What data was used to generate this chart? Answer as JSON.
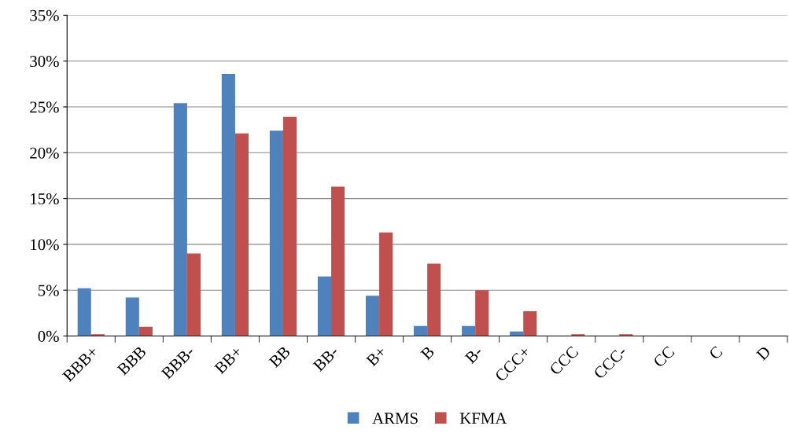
{
  "chart_data": {
    "type": "bar",
    "categories": [
      "BBB+",
      "BBB",
      "BBB-",
      "BB+",
      "BB",
      "BB-",
      "B+",
      "B",
      "B-",
      "CCC+",
      "CCC",
      "CCC-",
      "CC",
      "C",
      "D"
    ],
    "series": [
      {
        "name": "ARMS",
        "color": "#4f81bd",
        "values": [
          5.2,
          4.2,
          25.4,
          28.6,
          22.4,
          6.5,
          4.4,
          1.1,
          1.1,
          0.5,
          0,
          0,
          0,
          0,
          0
        ]
      },
      {
        "name": "KFMA",
        "color": "#c0504d",
        "values": [
          0.2,
          1.0,
          9.0,
          22.1,
          23.9,
          16.3,
          11.3,
          7.9,
          5.0,
          2.7,
          0.2,
          0.2,
          0,
          0,
          0
        ]
      }
    ],
    "ylim": [
      0,
      35
    ],
    "yticks": [
      {
        "value": 0,
        "label": "0%"
      },
      {
        "value": 5,
        "label": "5%"
      },
      {
        "value": 10,
        "label": "10%"
      },
      {
        "value": 15,
        "label": "15%"
      },
      {
        "value": 20,
        "label": "20%"
      },
      {
        "value": 25,
        "label": "25%"
      },
      {
        "value": 30,
        "label": "30%"
      },
      {
        "value": 35,
        "label": "35%"
      }
    ],
    "grid": "y",
    "legend": "bottom"
  }
}
